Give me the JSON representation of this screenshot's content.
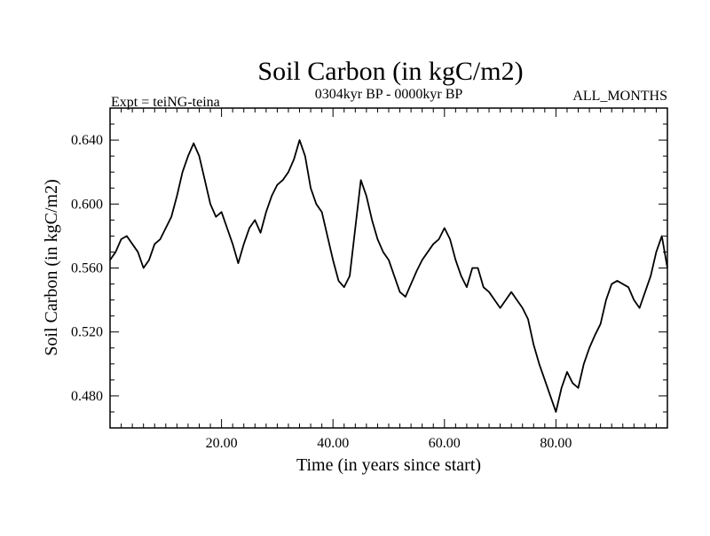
{
  "chart_data": {
    "type": "line",
    "title": "Soil Carbon (in kgC/m2)",
    "subtitle_left": "Expt = teiNG-teina",
    "subtitle_center": "0304kyr BP - 0000kyr BP",
    "subtitle_right": "ALL_MONTHS",
    "xlabel": "Time (in years since start)",
    "ylabel": "Soil Carbon (in kgC/m2)",
    "xlim": [
      0,
      100
    ],
    "ylim": [
      0.46,
      0.66
    ],
    "xticks": [
      20,
      40,
      60,
      80
    ],
    "xtick_labels": [
      "20.00",
      "40.00",
      "60.00",
      "80.00"
    ],
    "yticks": [
      0.48,
      0.52,
      0.56,
      0.6,
      0.64
    ],
    "ytick_labels": [
      "0.480",
      "0.520",
      "0.560",
      "0.600",
      "0.640"
    ],
    "grid": false,
    "series": [
      {
        "name": "Soil Carbon",
        "x": [
          0,
          1,
          2,
          3,
          4,
          5,
          6,
          7,
          8,
          9,
          10,
          11,
          12,
          13,
          14,
          15,
          16,
          17,
          18,
          19,
          20,
          21,
          22,
          23,
          24,
          25,
          26,
          27,
          28,
          29,
          30,
          31,
          32,
          33,
          34,
          35,
          36,
          37,
          38,
          39,
          40,
          41,
          42,
          43,
          44,
          45,
          46,
          47,
          48,
          49,
          50,
          51,
          52,
          53,
          54,
          55,
          56,
          57,
          58,
          59,
          60,
          61,
          62,
          63,
          64,
          65,
          66,
          67,
          68,
          69,
          70,
          71,
          72,
          73,
          74,
          75,
          76,
          77,
          78,
          79,
          80,
          81,
          82,
          83,
          84,
          85,
          86,
          87,
          88,
          89,
          90,
          91,
          92,
          93,
          94,
          95,
          96,
          97,
          98,
          99,
          100
        ],
        "values": [
          0.565,
          0.57,
          0.578,
          0.58,
          0.575,
          0.57,
          0.56,
          0.565,
          0.575,
          0.578,
          0.585,
          0.592,
          0.605,
          0.62,
          0.63,
          0.638,
          0.63,
          0.615,
          0.6,
          0.592,
          0.595,
          0.585,
          0.575,
          0.563,
          0.575,
          0.585,
          0.59,
          0.582,
          0.595,
          0.605,
          0.612,
          0.615,
          0.62,
          0.628,
          0.64,
          0.63,
          0.61,
          0.6,
          0.595,
          0.58,
          0.565,
          0.552,
          0.548,
          0.555,
          0.585,
          0.615,
          0.605,
          0.59,
          0.578,
          0.57,
          0.565,
          0.555,
          0.545,
          0.542,
          0.55,
          0.558,
          0.565,
          0.57,
          0.575,
          0.578,
          0.585,
          0.578,
          0.565,
          0.555,
          0.548,
          0.56,
          0.56,
          0.548,
          0.545,
          0.54,
          0.535,
          0.54,
          0.545,
          0.54,
          0.535,
          0.528,
          0.512,
          0.5,
          0.49,
          0.48,
          0.47,
          0.485,
          0.495,
          0.488,
          0.485,
          0.5,
          0.51,
          0.518,
          0.525,
          0.54,
          0.55,
          0.552,
          0.55,
          0.548,
          0.54,
          0.535,
          0.545,
          0.555,
          0.57,
          0.58,
          0.56
        ]
      }
    ]
  }
}
